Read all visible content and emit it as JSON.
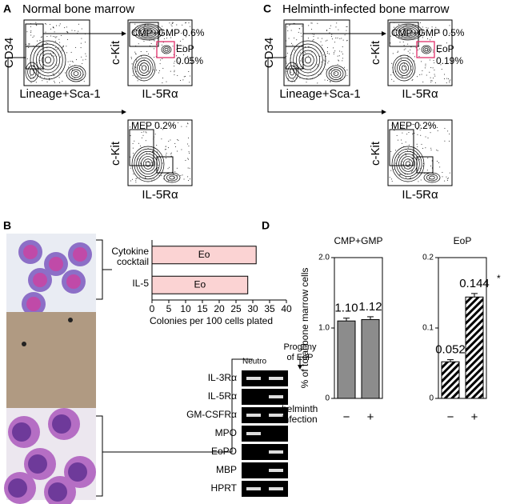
{
  "panels": {
    "A": {
      "label": "A",
      "title": "Normal bone marrow",
      "plot1": {
        "x_label": "Lineage+Sca-1",
        "y_label": "CD34"
      },
      "plot2": {
        "x_label": "IL-5Rα",
        "y_label": "c-Kit",
        "gate1": "CMP+GMP 0.6%",
        "gate2_name": "EoP",
        "gate2_value": "0.05%"
      },
      "plot3": {
        "x_label": "IL-5Rα",
        "y_label": "c-Kit",
        "gate": "MEP 0.2%"
      }
    },
    "C": {
      "label": "C",
      "title": "Helminth-infected bone marrow",
      "plot1": {
        "x_label": "Lineage+Sca-1",
        "y_label": "CD34"
      },
      "plot2": {
        "x_label": "IL-5Rα",
        "y_label": "c-Kit",
        "gate1": "CMP+GMP 0.5%",
        "gate2_name": "EoP",
        "gate2_value": "0.19%"
      },
      "plot3": {
        "x_label": "IL-5Rα",
        "y_label": "c-Kit",
        "gate": "MEP 0.2%"
      }
    },
    "B": {
      "label": "B",
      "gel": {
        "lanes": [
          "Neutro",
          "Progeny of EoP"
        ],
        "rows": [
          {
            "label": "IL-3Rα",
            "bands": [
              true,
              true
            ]
          },
          {
            "label": "IL-5Rα",
            "bands": [
              false,
              true
            ]
          },
          {
            "label": "GM-CSFRα",
            "bands": [
              true,
              true
            ]
          },
          {
            "label": "MPO",
            "bands": [
              true,
              false
            ]
          },
          {
            "label": "EoPO",
            "bands": [
              false,
              true
            ]
          },
          {
            "label": "MBP",
            "bands": [
              false,
              true
            ]
          },
          {
            "label": "HPRT",
            "bands": [
              true,
              true
            ]
          }
        ]
      }
    },
    "D": {
      "label": "D",
      "y_label": "% of total bone marrow cells",
      "x_label": "helminth infection"
    }
  },
  "chart_data": [
    {
      "type": "bar",
      "orientation": "horizontal",
      "categories": [
        "Cytokine cocktail",
        "IL-5"
      ],
      "values": [
        31,
        28.5
      ],
      "bar_labels": [
        "Eo",
        "Eo"
      ],
      "x_label": "Colonies per 100 cells plated",
      "xlim": [
        0,
        40
      ],
      "xticks": [
        0,
        5,
        10,
        15,
        20,
        25,
        30,
        35,
        40
      ],
      "color": "#fbd3d3"
    },
    {
      "type": "bar",
      "title": "CMP+GMP",
      "categories": [
        "−",
        "+"
      ],
      "values": [
        1.1,
        1.12
      ],
      "value_labels": [
        "1.10",
        "1.12"
      ],
      "errors": [
        0.04,
        0.04
      ],
      "ylim": [
        0,
        2
      ],
      "yticks": [
        0,
        {
          "value": 1,
          "label": "1.0"
        },
        {
          "value": 2,
          "label": "2.0"
        }
      ],
      "color": "#8c8c8c"
    },
    {
      "type": "bar",
      "title": "EoP",
      "categories": [
        "−",
        "+"
      ],
      "values": [
        0.052,
        0.144
      ],
      "errors": [
        0.003,
        0.005
      ],
      "ylim": [
        0,
        0.2
      ],
      "yticks": [
        0,
        0.1,
        0.2
      ],
      "color": "#000000",
      "hatch": true,
      "annotation": "*"
    }
  ]
}
